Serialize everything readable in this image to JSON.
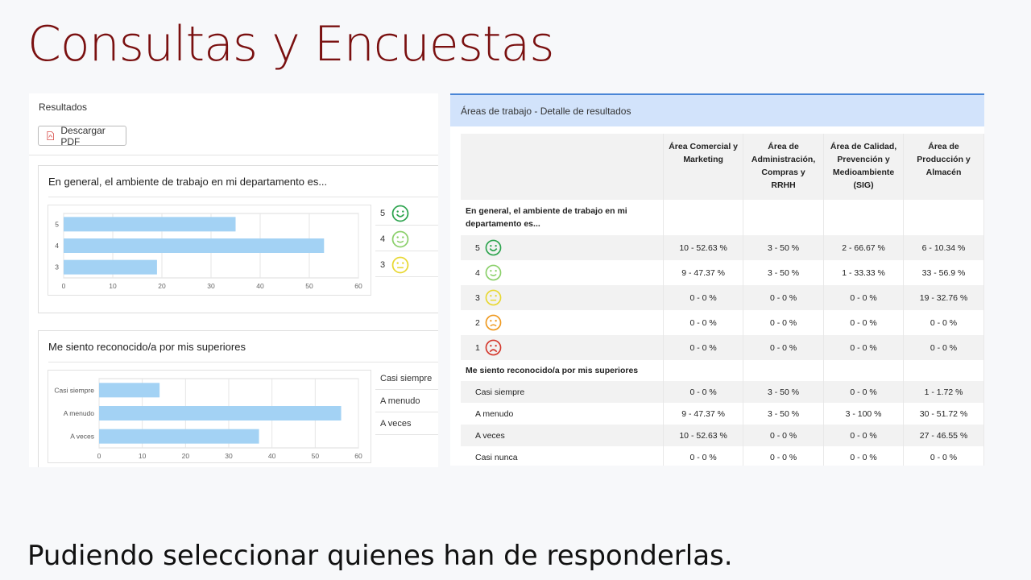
{
  "slide": {
    "title": "Consultas y Encuestas",
    "footer": "Pudiendo seleccionar quienes han de responderlas."
  },
  "left_panel": {
    "section_label": "Resultados",
    "pdf_button": "Descargar PDF"
  },
  "colors": {
    "bar": "#a3d2f4",
    "green": "#2ea44f",
    "light_green": "#8bd06b",
    "yellow": "#e8d833",
    "orange": "#ef9a22",
    "red": "#d43a2f",
    "header_blue": "#d2e3fb",
    "title_red": "#7a1010"
  },
  "chart_data": [
    {
      "type": "bar",
      "orientation": "horizontal",
      "title": "En general, el ambiente de trabajo en mi departamento es...",
      "categories": [
        "5",
        "4",
        "3"
      ],
      "values": [
        35,
        53,
        19
      ],
      "xlim": [
        0,
        60
      ],
      "xticks": [
        "0",
        "10",
        "20",
        "30",
        "40",
        "50",
        "60"
      ],
      "legend": [
        {
          "label": "5",
          "icon": "very-happy-face-icon"
        },
        {
          "label": "4",
          "icon": "happy-face-icon"
        },
        {
          "label": "3",
          "icon": "neutral-face-icon"
        }
      ]
    },
    {
      "type": "bar",
      "orientation": "horizontal",
      "title": "Me siento reconocido/a por mis superiores",
      "categories": [
        "Casi siempre",
        "A menudo",
        "A veces"
      ],
      "values": [
        14,
        56,
        37
      ],
      "xlim": [
        0,
        60
      ],
      "xticks": [
        "0",
        "10",
        "20",
        "30",
        "40",
        "50",
        "60"
      ],
      "legend": [
        {
          "label": "Casi siempre"
        },
        {
          "label": "A menudo"
        },
        {
          "label": "A veces"
        }
      ]
    }
  ],
  "right_panel": {
    "header": "Áreas de trabajo - Detalle de resultados",
    "columns": [
      "Área Comercial y Marketing",
      "Área de Administración, Compras y RRHH",
      "Área de Calidad, Prevención y Medioambiente (SIG)",
      "Área de Producción y Almacén"
    ],
    "q1": {
      "label": "En general, el ambiente de trabajo en mi departamento es...",
      "rows": [
        {
          "label": "5",
          "icon": "very-happy-face-icon",
          "cells": [
            "10 - 52.63 %",
            "3 - 50 %",
            "2 - 66.67 %",
            "6 - 10.34 %"
          ]
        },
        {
          "label": "4",
          "icon": "happy-face-icon",
          "cells": [
            "9 - 47.37 %",
            "3 - 50 %",
            "1 - 33.33 %",
            "33 - 56.9 %"
          ]
        },
        {
          "label": "3",
          "icon": "neutral-face-icon",
          "cells": [
            "0 - 0 %",
            "0 - 0 %",
            "0 - 0 %",
            "19 - 32.76 %"
          ]
        },
        {
          "label": "2",
          "icon": "sad-face-icon",
          "cells": [
            "0 - 0 %",
            "0 - 0 %",
            "0 - 0 %",
            "0 - 0 %"
          ]
        },
        {
          "label": "1",
          "icon": "very-sad-face-icon",
          "cells": [
            "0 - 0 %",
            "0 - 0 %",
            "0 - 0 %",
            "0 - 0 %"
          ]
        }
      ]
    },
    "q2": {
      "label": "Me siento reconocido/a por mis superiores",
      "rows": [
        {
          "label": "Casi siempre",
          "cells": [
            "0 - 0 %",
            "3 - 50 %",
            "0 - 0 %",
            "1 - 1.72 %"
          ]
        },
        {
          "label": "A menudo",
          "cells": [
            "9 - 47.37 %",
            "3 - 50 %",
            "3 - 100 %",
            "30 - 51.72 %"
          ]
        },
        {
          "label": "A veces",
          "cells": [
            "10 - 52.63 %",
            "0 - 0 %",
            "0 - 0 %",
            "27 - 46.55 %"
          ]
        },
        {
          "label": "Casi nunca",
          "cells": [
            "0 - 0 %",
            "0 - 0 %",
            "0 - 0 %",
            "0 - 0 %"
          ]
        }
      ]
    }
  }
}
